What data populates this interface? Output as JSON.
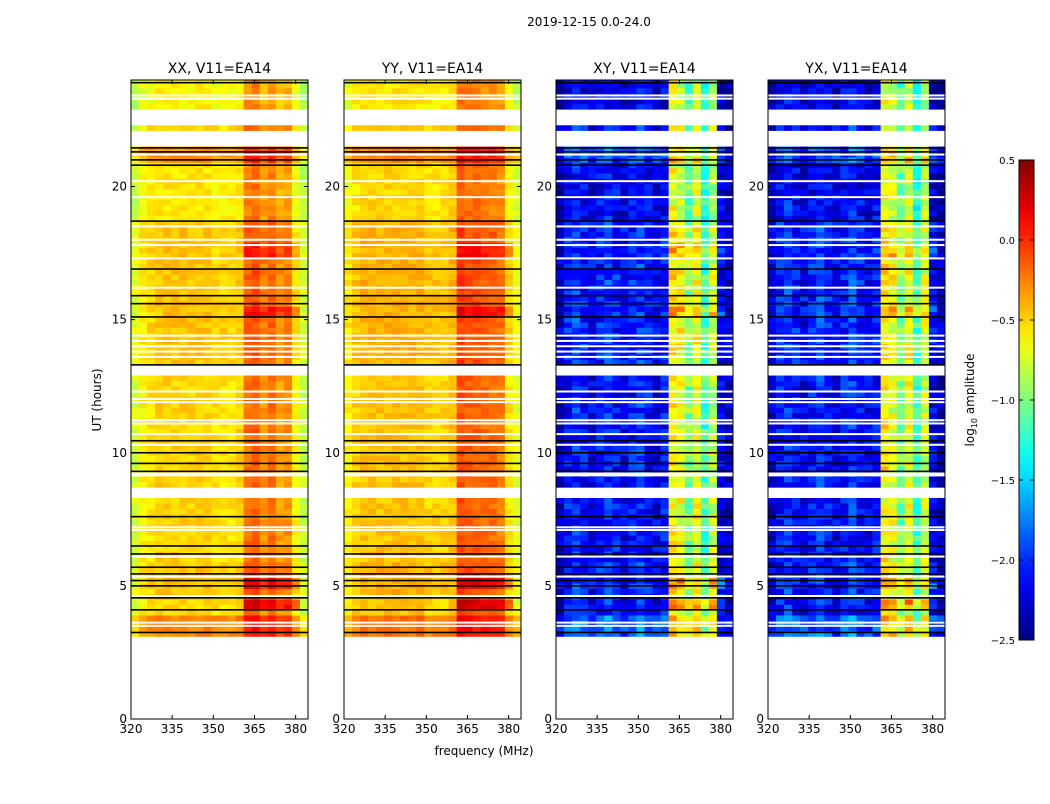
{
  "chart_data": {
    "type": "heatmap",
    "title": "2019-12-15 0.0-24.0",
    "xlabel": "frequency (MHz)",
    "ylabel": "UT (hours)",
    "xlim": [
      320,
      384.5
    ],
    "ylim": [
      0,
      24
    ],
    "xticks": [
      320,
      335,
      350,
      365,
      380
    ],
    "yticks": [
      0,
      5,
      10,
      15,
      20
    ],
    "colorbar": {
      "label_main": "log",
      "label_sub": "10",
      "label_rest": " amplitude",
      "colormap": "jet",
      "range": [
        -2.5,
        0.5
      ],
      "ticks": [
        0.5,
        0.0,
        -0.5,
        -1.0,
        -1.5,
        -2.0,
        -2.5
      ],
      "tick_labels": [
        "0.5",
        "0.0",
        "−0.5",
        "−1.0",
        "−1.5",
        "−2.0",
        "−2.5"
      ]
    },
    "time_step_hours": 0.2,
    "data_start_hour": 3.1,
    "gaps_hours": [
      [
        8.25,
        8.75
      ],
      [
        12.9,
        13.2
      ],
      [
        21.55,
        22.15
      ],
      [
        22.3,
        22.85
      ]
    ],
    "flagged_white_rows": [
      3.5,
      3.62,
      4.62,
      5.35,
      6.1,
      7.1,
      7.2,
      9.15,
      9.22,
      10.3,
      10.7,
      11.1,
      11.22,
      11.9,
      12.02,
      12.3,
      13.6,
      13.8,
      14.0,
      14.2,
      14.4,
      16.2,
      17.3,
      17.8,
      18.0,
      18.5,
      19.6,
      20.2,
      21.2,
      23.3,
      23.42
    ],
    "flagged_black_rows": [
      3.25,
      4.1,
      4.55,
      5.0,
      5.2,
      5.45,
      5.7,
      6.2,
      6.5,
      7.6,
      9.3,
      9.6,
      10.0,
      10.45,
      13.3,
      15.1,
      15.6,
      15.9,
      16.9,
      18.7,
      20.8,
      21.0,
      21.3,
      21.45,
      23.9
    ],
    "time_offsets": [
      [
        3.1,
        4.0,
        0.25
      ],
      [
        4.6,
        6.0,
        0.05
      ],
      [
        13.3,
        18.7,
        0.05
      ],
      [
        18.7,
        20.8,
        -0.05
      ],
      [
        20.8,
        21.55,
        0.2
      ],
      [
        22.3,
        24,
        -0.1
      ]
    ],
    "band_boost": {
      "freq_range": [
        361,
        382
      ],
      "segments": [
        [
          4.1,
          4.5,
          0.4
        ],
        [
          5.0,
          5.4,
          0.3
        ],
        [
          15.0,
          15.4,
          0.25
        ],
        [
          17.2,
          17.8,
          0.2
        ]
      ]
    },
    "panels": [
      {
        "title": "XX, V11=EA14",
        "noise": 0.08,
        "freq_profile": [
          -0.75,
          -0.6,
          -0.55,
          -0.5,
          -0.5,
          -0.5,
          -0.5,
          -0.5,
          -0.5,
          -0.5,
          -0.55,
          -0.55,
          -0.55,
          -0.5,
          -0.2,
          -0.15,
          -0.3,
          -0.2,
          -0.35,
          -0.3,
          -0.6,
          -0.8
        ]
      },
      {
        "title": "YY, V11=EA14",
        "noise": 0.08,
        "freq_profile": [
          -0.6,
          -0.5,
          -0.45,
          -0.45,
          -0.45,
          -0.45,
          -0.45,
          -0.45,
          -0.45,
          -0.45,
          -0.5,
          -0.5,
          -0.5,
          -0.45,
          -0.1,
          -0.15,
          -0.15,
          -0.2,
          -0.2,
          -0.25,
          -0.55,
          -0.7
        ]
      },
      {
        "title": "XY, V11=EA14",
        "noise": 0.22,
        "freq_profile": [
          -2.3,
          -2.1,
          -2.0,
          -2.1,
          -2.2,
          -2.1,
          -2.0,
          -2.1,
          -2.2,
          -2.1,
          -2.0,
          -2.1,
          -2.2,
          -2.1,
          -0.6,
          -0.7,
          -1.0,
          -0.7,
          -1.2,
          -0.8,
          -2.2,
          -2.3
        ]
      },
      {
        "title": "YX, V11=EA14",
        "noise": 0.22,
        "freq_profile": [
          -2.3,
          -2.1,
          -2.0,
          -2.1,
          -2.2,
          -2.1,
          -2.0,
          -2.1,
          -2.2,
          -2.1,
          -2.0,
          -2.1,
          -2.2,
          -2.1,
          -0.6,
          -0.7,
          -1.0,
          -0.7,
          -1.2,
          -0.8,
          -2.2,
          -2.3
        ]
      }
    ]
  }
}
